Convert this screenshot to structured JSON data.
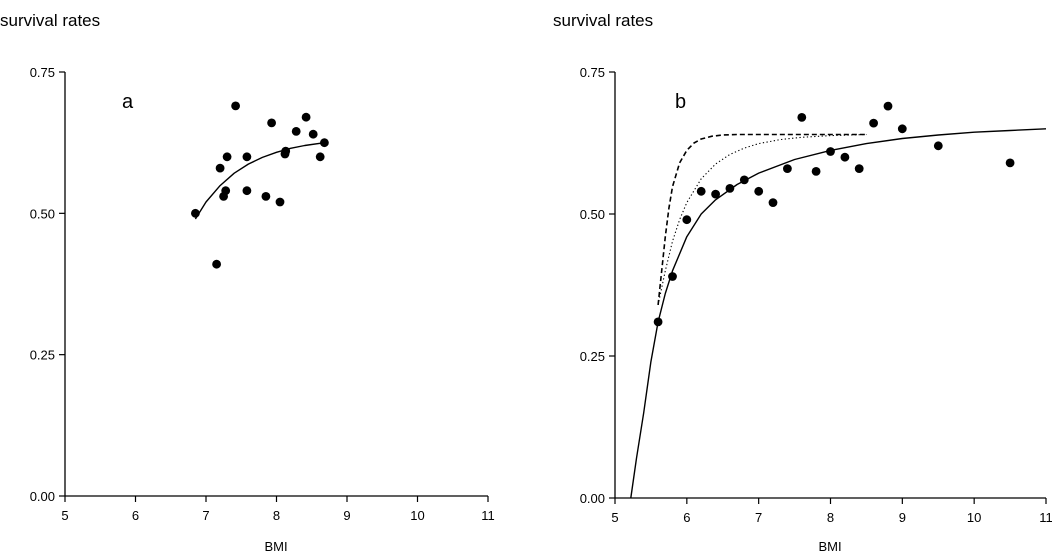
{
  "chart_data": [
    {
      "type": "scatter",
      "panel_label": "a",
      "ylabel": "survival rates",
      "xlabel": "BMI",
      "xlim": [
        5,
        11
      ],
      "ylim": [
        0,
        0.75
      ],
      "x_ticks": [
        5,
        6,
        7,
        8,
        9,
        10,
        11
      ],
      "x_tick_labels": [
        "5",
        "6",
        "7",
        "8",
        "9",
        "10",
        "11"
      ],
      "y_ticks": [
        0,
        0.25,
        0.5,
        0.75
      ],
      "y_tick_labels": [
        "0.00",
        "0.25",
        "0.50",
        "0.75"
      ],
      "grid": false,
      "points": [
        {
          "x": 6.85,
          "y": 0.5
        },
        {
          "x": 7.15,
          "y": 0.41
        },
        {
          "x": 7.2,
          "y": 0.58
        },
        {
          "x": 7.25,
          "y": 0.53
        },
        {
          "x": 7.28,
          "y": 0.54
        },
        {
          "x": 7.3,
          "y": 0.6
        },
        {
          "x": 7.42,
          "y": 0.69
        },
        {
          "x": 7.58,
          "y": 0.54
        },
        {
          "x": 7.58,
          "y": 0.6
        },
        {
          "x": 7.85,
          "y": 0.53
        },
        {
          "x": 7.93,
          "y": 0.66
        },
        {
          "x": 8.05,
          "y": 0.52
        },
        {
          "x": 8.12,
          "y": 0.605
        },
        {
          "x": 8.13,
          "y": 0.61
        },
        {
          "x": 8.28,
          "y": 0.645
        },
        {
          "x": 8.42,
          "y": 0.67
        },
        {
          "x": 8.52,
          "y": 0.64
        },
        {
          "x": 8.62,
          "y": 0.6
        },
        {
          "x": 8.68,
          "y": 0.625
        }
      ],
      "curves": [
        {
          "style": "solid",
          "x": [
            6.85,
            7.0,
            7.2,
            7.4,
            7.6,
            7.8,
            8.0,
            8.2,
            8.4,
            8.68
          ],
          "y": [
            0.49,
            0.52,
            0.549,
            0.571,
            0.587,
            0.599,
            0.608,
            0.615,
            0.62,
            0.625
          ]
        }
      ]
    },
    {
      "type": "scatter",
      "panel_label": "b",
      "ylabel": "survival rates",
      "xlabel": "BMI",
      "xlim": [
        5,
        11
      ],
      "ylim": [
        0,
        0.75
      ],
      "x_ticks": [
        5,
        6,
        7,
        8,
        9,
        10,
        11
      ],
      "x_tick_labels": [
        "5",
        "6",
        "7",
        "8",
        "9",
        "10",
        "11"
      ],
      "y_ticks": [
        0,
        0.25,
        0.5,
        0.75
      ],
      "y_tick_labels": [
        "0.00",
        "0.25",
        "0.50",
        "0.75"
      ],
      "grid": false,
      "points": [
        {
          "x": 5.6,
          "y": 0.31
        },
        {
          "x": 5.8,
          "y": 0.39
        },
        {
          "x": 6.0,
          "y": 0.49
        },
        {
          "x": 6.2,
          "y": 0.54
        },
        {
          "x": 6.4,
          "y": 0.535
        },
        {
          "x": 6.6,
          "y": 0.545
        },
        {
          "x": 6.8,
          "y": 0.56
        },
        {
          "x": 7.0,
          "y": 0.54
        },
        {
          "x": 7.2,
          "y": 0.52
        },
        {
          "x": 7.4,
          "y": 0.58
        },
        {
          "x": 7.6,
          "y": 0.67
        },
        {
          "x": 7.8,
          "y": 0.575
        },
        {
          "x": 8.0,
          "y": 0.61
        },
        {
          "x": 8.2,
          "y": 0.6
        },
        {
          "x": 8.4,
          "y": 0.58
        },
        {
          "x": 8.6,
          "y": 0.66
        },
        {
          "x": 8.8,
          "y": 0.69
        },
        {
          "x": 9.0,
          "y": 0.65
        },
        {
          "x": 9.5,
          "y": 0.62
        },
        {
          "x": 10.5,
          "y": 0.59
        }
      ],
      "curves": [
        {
          "style": "solid",
          "x": [
            5.22,
            5.3,
            5.4,
            5.5,
            5.6,
            5.7,
            5.8,
            6.0,
            6.2,
            6.4,
            6.7,
            7.0,
            7.5,
            8.0,
            8.5,
            9.0,
            9.5,
            10.0,
            10.5,
            11.0
          ],
          "y": [
            0.0,
            0.07,
            0.15,
            0.24,
            0.31,
            0.36,
            0.4,
            0.46,
            0.5,
            0.525,
            0.552,
            0.572,
            0.596,
            0.612,
            0.624,
            0.633,
            0.639,
            0.644,
            0.647,
            0.65
          ]
        },
        {
          "style": "dashed",
          "x": [
            5.6,
            5.65,
            5.7,
            5.75,
            5.8,
            5.9,
            6.0,
            6.1,
            6.2,
            6.35,
            6.5,
            6.7,
            7.0,
            7.5,
            8.0,
            8.5
          ],
          "y": [
            0.34,
            0.4,
            0.46,
            0.51,
            0.548,
            0.59,
            0.612,
            0.625,
            0.632,
            0.637,
            0.639,
            0.64,
            0.64,
            0.64,
            0.64,
            0.64
          ]
        },
        {
          "style": "dotted",
          "x": [
            5.6,
            5.7,
            5.8,
            5.9,
            6.0,
            6.2,
            6.4,
            6.6,
            6.8,
            7.0,
            7.3,
            7.6,
            8.0,
            8.5
          ],
          "y": [
            0.34,
            0.4,
            0.452,
            0.49,
            0.52,
            0.562,
            0.588,
            0.605,
            0.616,
            0.624,
            0.631,
            0.635,
            0.638,
            0.64
          ]
        }
      ]
    }
  ]
}
